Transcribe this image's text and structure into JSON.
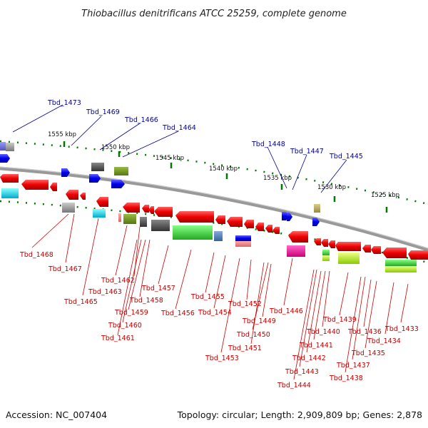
{
  "title": "Thiobacillus denitrificans ATCC 25259, complete genome",
  "footer": {
    "accession": "Accession: NC_007404",
    "topology": "Topology: circular; Length: 2,909,809 bp; Genes: 2,878"
  },
  "colors": {
    "forward": "#0000ee",
    "reverse": "#ee0000",
    "backbone": "#888888",
    "ticks": "#007700",
    "label_forward": "#00009a",
    "label_reverse": "#c00000"
  },
  "scale_labels": [
    "1555 kbp",
    "1550 kbp",
    "1545 kbp",
    "1540 kbp",
    "1535 kbp",
    "1530 kbp",
    "1525 kbp"
  ],
  "top_labels": [
    "Tbd_1473",
    "Tbd_1469",
    "Tbd_1466",
    "Tbd_1464",
    "Tbd_1448",
    "Tbd_1447",
    "Tbd_1445"
  ],
  "bottom_labels": [
    "Tbd_1468",
    "Tbd_1467",
    "Tbd_1465",
    "Tbd_1463",
    "Tbd_1462",
    "Tbd_1461",
    "Tbd_1460",
    "Tbd_1459",
    "Tbd_1458",
    "Tbd_1457",
    "Tbd_1456",
    "Tbd_1455",
    "Tbd_1454",
    "Tbd_1453",
    "Tbd_1452",
    "Tbd_1451",
    "Tbd_1450",
    "Tbd_1449",
    "Tbd_1446",
    "Tbd_1444",
    "Tbd_1443",
    "Tbd_1442",
    "Tbd_1441",
    "Tbd_1440",
    "Tbd_1439",
    "Tbd_1438",
    "Tbd_1437",
    "Tbd_1436",
    "Tbd_1435",
    "Tbd_1434",
    "Tbd_1433"
  ]
}
